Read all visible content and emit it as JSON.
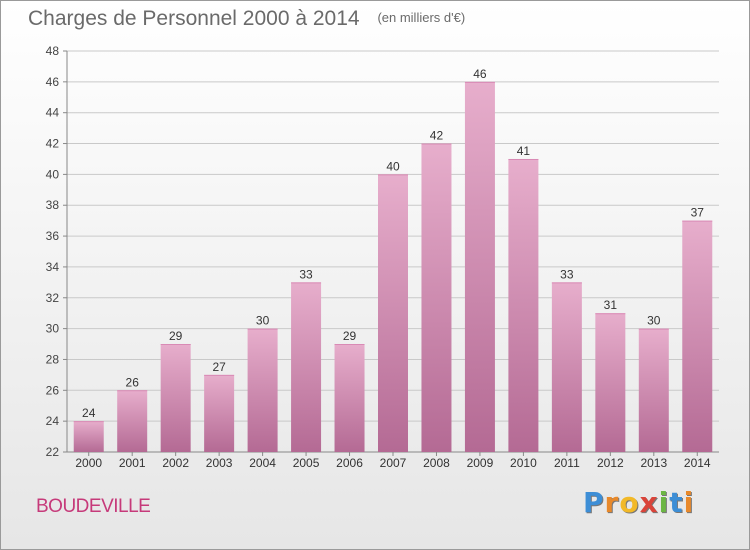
{
  "header": {
    "title": "Charges de Personnel 2000 à 2014",
    "unit": "(en milliers d'€)"
  },
  "footer": {
    "place": "BOUDEVILLE",
    "logo": "Proxiti"
  },
  "colors": {
    "bar_top": "#e7aecc",
    "bar_bottom": "#b46a94",
    "place_text": "#c63a7a"
  },
  "chart_data": {
    "type": "bar",
    "title": "Charges de Personnel 2000 à 2014",
    "subtitle": "(en milliers d'€)",
    "categories": [
      "2000",
      "2001",
      "2002",
      "2003",
      "2004",
      "2005",
      "2006",
      "2007",
      "2008",
      "2009",
      "2010",
      "2011",
      "2012",
      "2013",
      "2014"
    ],
    "values": [
      24,
      26,
      29,
      27,
      30,
      33,
      29,
      40,
      42,
      46,
      41,
      33,
      31,
      30,
      37
    ],
    "ylim": [
      22,
      48
    ],
    "yticks": [
      22,
      24,
      26,
      28,
      30,
      32,
      34,
      36,
      38,
      40,
      42,
      44,
      46,
      48
    ],
    "grid": true,
    "data_labels": true
  }
}
